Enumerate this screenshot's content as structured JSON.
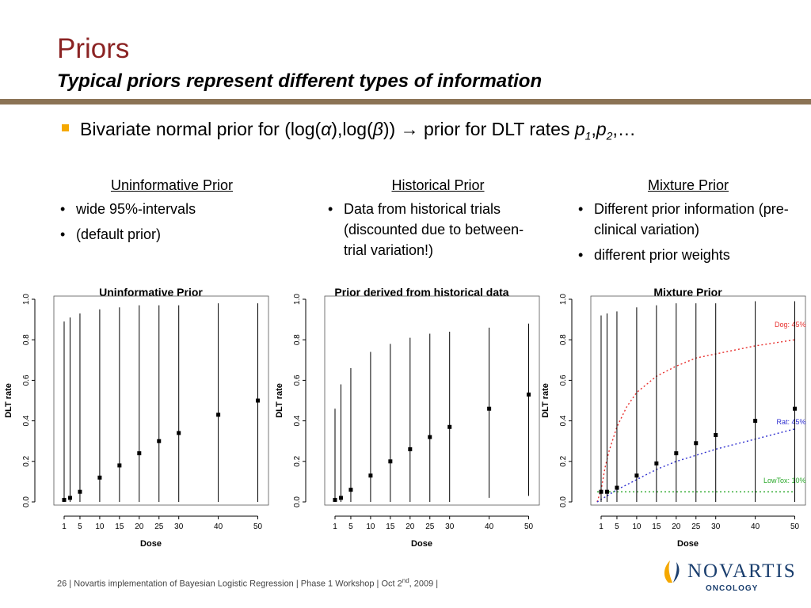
{
  "slide": {
    "title": "Priors",
    "subtitle": "Typical priors represent different types of information",
    "main_bullet": {
      "pre": "Bivariate normal prior for (log(",
      "alpha": "α",
      "mid": "),log(",
      "beta": "β",
      "post": ")) → prior for DLT rates ",
      "p1": "p",
      "p1_sub": "1",
      "comma": ",",
      "p2": "p",
      "p2_sub": "2",
      "ellipsis": ",…"
    },
    "columns": [
      {
        "heading": "Uninformative Prior",
        "bullets": [
          "wide 95%-intervals",
          "(default prior)"
        ]
      },
      {
        "heading": "Historical Prior",
        "bullets": [
          "Data from historical trials (discounted due to between-trial variation!)"
        ]
      },
      {
        "heading": "Mixture Prior",
        "bullets": [
          "Different prior information (pre-clinical variation)",
          "different prior weights"
        ]
      }
    ],
    "footer": {
      "page": "26",
      "text": " | Novartis implementation of Bayesian Logistic Regression | Phase 1 Workshop | Oct 2",
      "sup": "nd",
      "tail": ", 2009 |"
    },
    "logo": {
      "word": "NOVARTIS",
      "sub": "ONCOLOGY",
      "color": "#1a3e6e",
      "icon_colors": [
        "#f5a800",
        "#1a3e6e"
      ]
    }
  },
  "chart_data": [
    {
      "type": "scatter",
      "title": "Uninformative Prior",
      "xlabel": "Dose",
      "ylabel": "DLT rate",
      "x": [
        1,
        2.5,
        5,
        10,
        15,
        20,
        25,
        30,
        40,
        50
      ],
      "xticks": [
        "1",
        "5",
        "10",
        "15",
        "20",
        "25",
        "30",
        "40",
        "50"
      ],
      "xtick_values": [
        1,
        5,
        10,
        15,
        20,
        25,
        30,
        40,
        50
      ],
      "yticks": [
        "0.0",
        "0.2",
        "0.4",
        "0.6",
        "0.8",
        "1.0"
      ],
      "ylim": [
        0,
        1
      ],
      "medians": [
        0.01,
        0.02,
        0.05,
        0.12,
        0.18,
        0.24,
        0.3,
        0.34,
        0.43,
        0.5
      ],
      "lower": [
        0,
        0,
        0,
        0,
        0,
        0,
        0,
        0,
        0,
        0
      ],
      "upper": [
        0.89,
        0.91,
        0.93,
        0.95,
        0.96,
        0.97,
        0.97,
        0.97,
        0.98,
        0.98
      ],
      "curves": []
    },
    {
      "type": "scatter",
      "title": "Prior derived from historical data",
      "xlabel": "Dose",
      "ylabel": "DLT rate",
      "x": [
        1,
        2.5,
        5,
        10,
        15,
        20,
        25,
        30,
        40,
        50
      ],
      "xticks": [
        "1",
        "5",
        "10",
        "15",
        "20",
        "25",
        "30",
        "40",
        "50"
      ],
      "xtick_values": [
        1,
        5,
        10,
        15,
        20,
        25,
        30,
        40,
        50
      ],
      "yticks": [
        "0.0",
        "0.2",
        "0.4",
        "0.6",
        "0.8",
        "1.0"
      ],
      "ylim": [
        0,
        1
      ],
      "medians": [
        0.01,
        0.02,
        0.06,
        0.13,
        0.2,
        0.26,
        0.32,
        0.37,
        0.46,
        0.53
      ],
      "lower": [
        0,
        0,
        0,
        0,
        0,
        0,
        0,
        0,
        0.02,
        0.03
      ],
      "upper": [
        0.46,
        0.58,
        0.66,
        0.74,
        0.78,
        0.81,
        0.83,
        0.84,
        0.86,
        0.88
      ],
      "curves": []
    },
    {
      "type": "scatter",
      "title": "Mixture Prior",
      "xlabel": "Dose",
      "ylabel": "DLT rate",
      "x": [
        1,
        2.5,
        5,
        10,
        15,
        20,
        25,
        30,
        40,
        50
      ],
      "xticks": [
        "1",
        "5",
        "10",
        "15",
        "20",
        "25",
        "30",
        "40",
        "50"
      ],
      "xtick_values": [
        1,
        5,
        10,
        15,
        20,
        25,
        30,
        40,
        50
      ],
      "yticks": [
        "0.0",
        "0.2",
        "0.4",
        "0.6",
        "0.8",
        "1.0"
      ],
      "ylim": [
        0,
        1
      ],
      "medians": [
        0.05,
        0.05,
        0.07,
        0.13,
        0.19,
        0.24,
        0.29,
        0.33,
        0.4,
        0.46
      ],
      "lower": [
        0,
        0,
        0,
        0,
        0,
        0,
        0,
        0,
        0,
        0
      ],
      "upper": [
        0.92,
        0.93,
        0.94,
        0.96,
        0.97,
        0.98,
        0.98,
        0.98,
        0.99,
        0.99
      ],
      "curves": [
        {
          "name": "Dog: 45%",
          "color": "#e8312f",
          "x": [
            0,
            1,
            2,
            3,
            5,
            7.5,
            10,
            15,
            20,
            25,
            30,
            40,
            50
          ],
          "y": [
            0,
            0.06,
            0.17,
            0.25,
            0.37,
            0.47,
            0.54,
            0.62,
            0.67,
            0.71,
            0.73,
            0.77,
            0.8
          ]
        },
        {
          "name": "Rat: 45%",
          "color": "#2e2ecf",
          "x": [
            0,
            5,
            10,
            15,
            20,
            25,
            30,
            40,
            50
          ],
          "y": [
            0,
            0.06,
            0.11,
            0.16,
            0.2,
            0.23,
            0.26,
            0.31,
            0.36
          ]
        },
        {
          "name": "LowTox: 10%",
          "color": "#2aa82a",
          "x": [
            0,
            50
          ],
          "y": [
            0.05,
            0.05
          ]
        }
      ]
    }
  ]
}
